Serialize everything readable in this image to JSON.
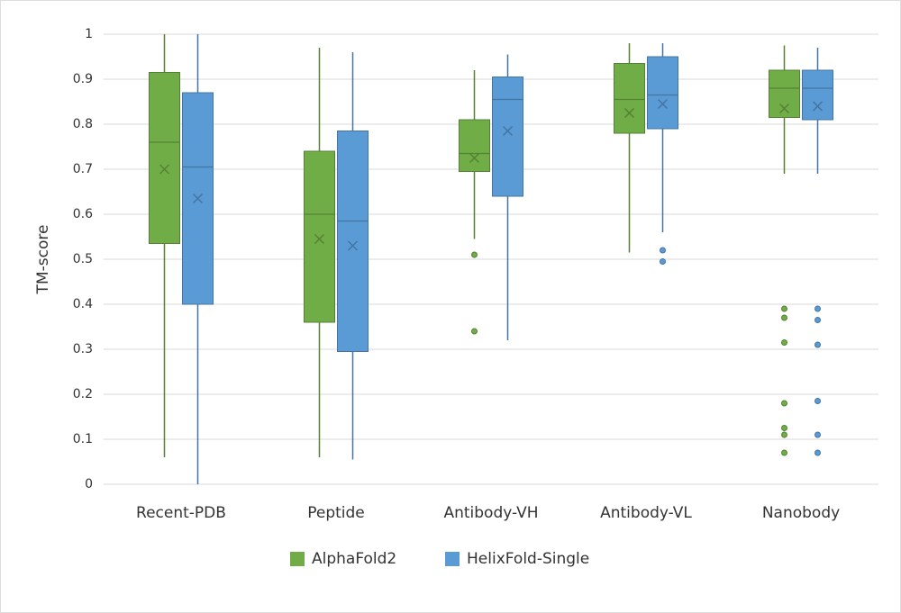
{
  "chart_data": {
    "type": "box",
    "y_label": "TM-score",
    "categories": [
      "Recent-PDB",
      "Peptide",
      "Antibody-VH",
      "Antibody-VL",
      "Nanobody"
    ],
    "ylim": [
      0,
      1
    ],
    "yticks": [
      0,
      0.1,
      0.2,
      0.3,
      0.4,
      0.5,
      0.6,
      0.7,
      0.8,
      0.9,
      1
    ],
    "grid": true,
    "legend": "bottom",
    "series": [
      {
        "name": "AlphaFold2",
        "color": "#70ad47",
        "boxes": [
          {
            "min": 0.06,
            "q1": 0.535,
            "median": 0.76,
            "q3": 0.915,
            "max": 1.0,
            "mean": 0.7,
            "outliers": []
          },
          {
            "min": 0.06,
            "q1": 0.36,
            "median": 0.6,
            "q3": 0.74,
            "max": 0.97,
            "mean": 0.545,
            "outliers": []
          },
          {
            "min": 0.545,
            "q1": 0.695,
            "median": 0.735,
            "q3": 0.81,
            "max": 0.92,
            "mean": 0.725,
            "outliers": [
              0.51,
              0.34
            ]
          },
          {
            "min": 0.515,
            "q1": 0.78,
            "median": 0.855,
            "q3": 0.935,
            "max": 0.98,
            "mean": 0.825,
            "outliers": []
          },
          {
            "min": 0.69,
            "q1": 0.815,
            "median": 0.88,
            "q3": 0.92,
            "max": 0.975,
            "mean": 0.835,
            "outliers": [
              0.39,
              0.37,
              0.315,
              0.18,
              0.125,
              0.11,
              0.07
            ]
          }
        ]
      },
      {
        "name": "HelixFold-Single",
        "color": "#5b9bd5",
        "boxes": [
          {
            "min": 0.0,
            "q1": 0.4,
            "median": 0.705,
            "q3": 0.87,
            "max": 1.0,
            "mean": 0.635,
            "outliers": []
          },
          {
            "min": 0.055,
            "q1": 0.295,
            "median": 0.585,
            "q3": 0.785,
            "max": 0.96,
            "mean": 0.53,
            "outliers": []
          },
          {
            "min": 0.32,
            "q1": 0.64,
            "median": 0.855,
            "q3": 0.905,
            "max": 0.955,
            "mean": 0.785,
            "outliers": []
          },
          {
            "min": 0.56,
            "q1": 0.79,
            "median": 0.865,
            "q3": 0.95,
            "max": 0.98,
            "mean": 0.845,
            "outliers": [
              0.52,
              0.495
            ]
          },
          {
            "min": 0.69,
            "q1": 0.81,
            "median": 0.88,
            "q3": 0.92,
            "max": 0.97,
            "mean": 0.84,
            "outliers": [
              0.39,
              0.365,
              0.31,
              0.185,
              0.11,
              0.07
            ]
          }
        ]
      }
    ]
  }
}
